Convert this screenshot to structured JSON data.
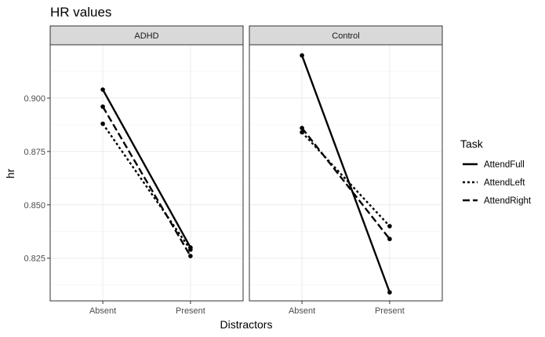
{
  "chart_data": {
    "type": "line",
    "title": "HR values",
    "xlabel": "Distractors",
    "ylabel": "hr",
    "categories": [
      "Absent",
      "Present"
    ],
    "ylim": [
      0.805,
      0.925
    ],
    "yticks": [
      0.825,
      0.85,
      0.875,
      0.9
    ],
    "ytick_labels": [
      "0.825",
      "0.850",
      "0.875",
      "0.900"
    ],
    "grid": true,
    "legend": {
      "title": "Task",
      "position": "right",
      "entries": [
        {
          "label": "AttendFull",
          "linetype": "solid"
        },
        {
          "label": "AttendLeft",
          "linetype": "dotted"
        },
        {
          "label": "AttendRight",
          "linetype": "dashed"
        }
      ]
    },
    "panels": [
      {
        "label": "ADHD",
        "series": [
          {
            "name": "AttendFull",
            "linetype": "solid",
            "values": [
              0.904,
              0.83
            ]
          },
          {
            "name": "AttendLeft",
            "linetype": "dotted",
            "values": [
              0.888,
              0.829
            ]
          },
          {
            "name": "AttendRight",
            "linetype": "dashed",
            "values": [
              0.896,
              0.826
            ]
          }
        ]
      },
      {
        "label": "Control",
        "series": [
          {
            "name": "AttendFull",
            "linetype": "solid",
            "values": [
              0.92,
              0.809
            ]
          },
          {
            "name": "AttendLeft",
            "linetype": "dotted",
            "values": [
              0.884,
              0.84
            ]
          },
          {
            "name": "AttendRight",
            "linetype": "dashed",
            "values": [
              0.886,
              0.834
            ]
          }
        ]
      }
    ]
  }
}
